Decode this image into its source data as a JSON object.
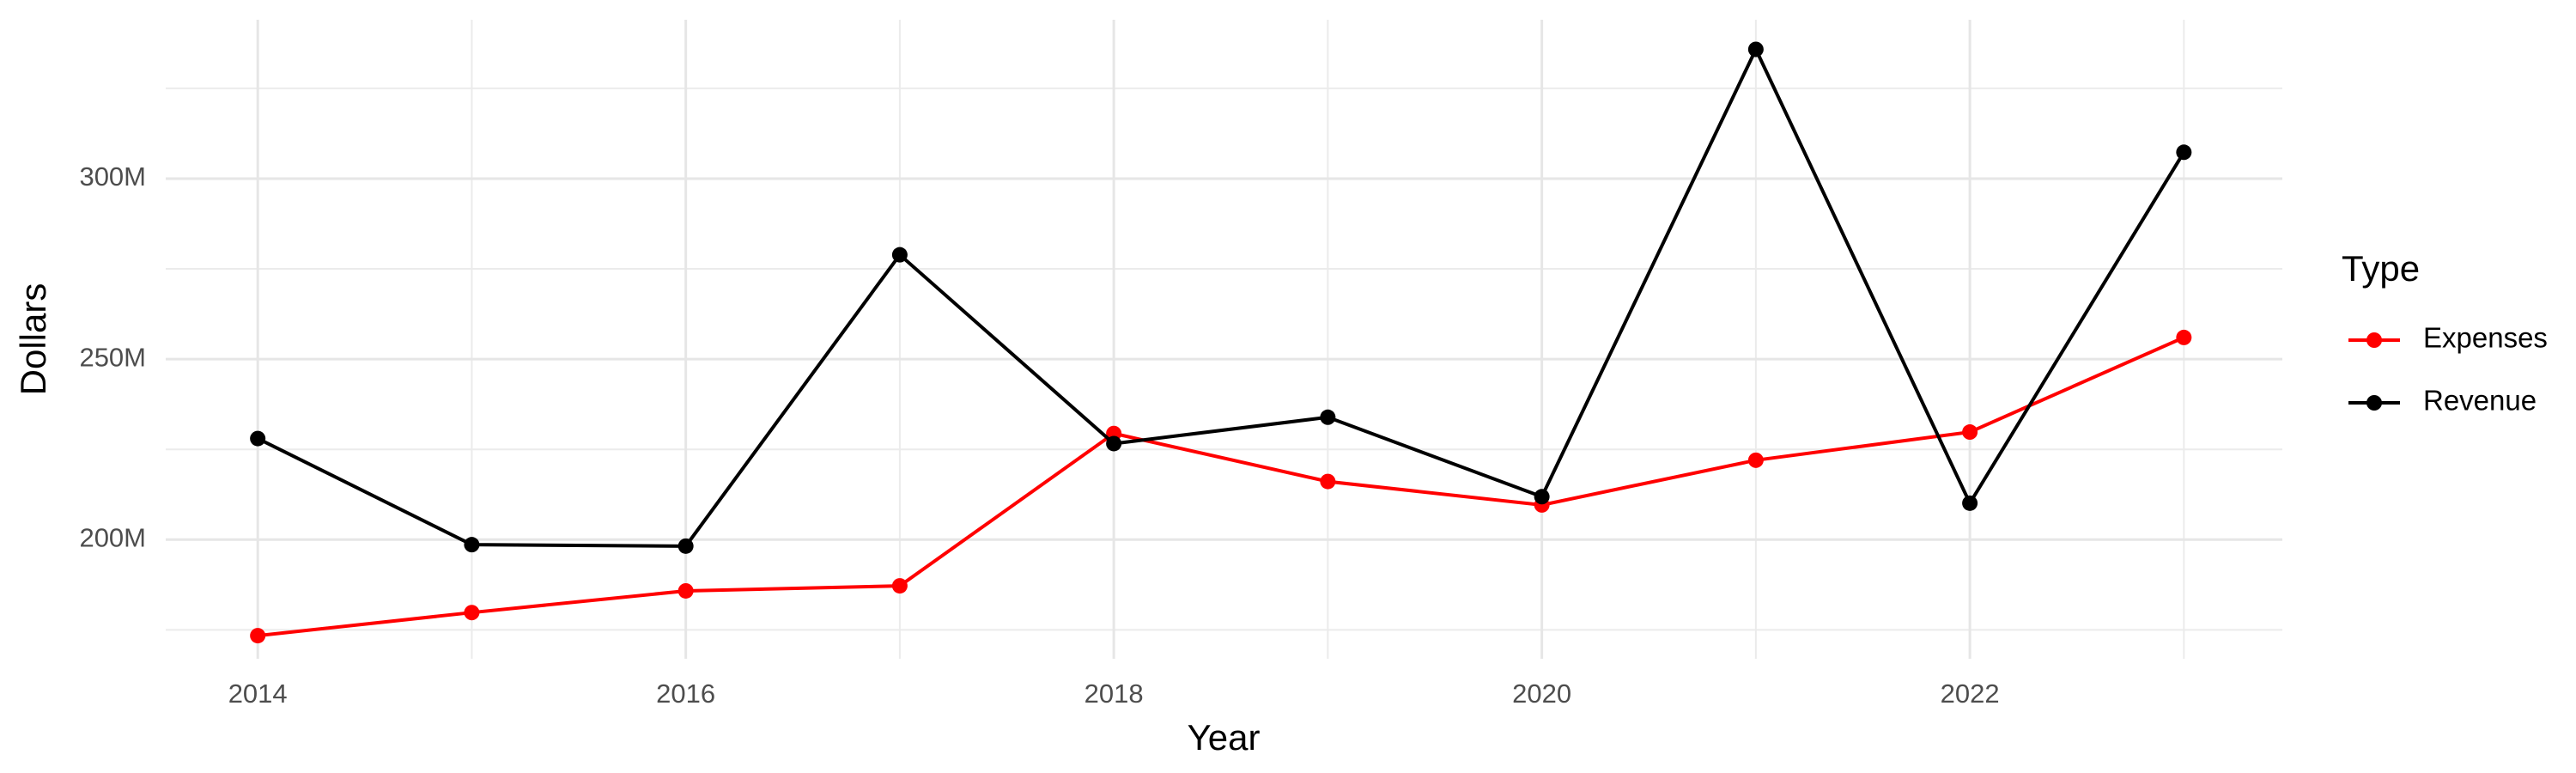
{
  "chart_data": {
    "type": "line",
    "x_label": "Year",
    "y_label": "Dollars",
    "legend_title": "Type",
    "x": [
      2014,
      2015,
      2016,
      2017,
      2018,
      2019,
      2020,
      2021,
      2022,
      2023
    ],
    "series": [
      {
        "name": "Expenses",
        "color": "#ff0000",
        "values": [
          173400000,
          179800000,
          185800000,
          187200000,
          229400000,
          216100000,
          209600000,
          222000000,
          229800000,
          256000000
        ]
      },
      {
        "name": "Revenue",
        "color": "#000000",
        "values": [
          228000000,
          198600000,
          198200000,
          278900000,
          226600000,
          233900000,
          211900000,
          335800000,
          210100000,
          307300000
        ]
      }
    ],
    "xlim": [
      2013.57,
      2023.46
    ],
    "xticks": [
      2014,
      2016,
      2018,
      2020,
      2022
    ],
    "xminor": [
      2015,
      2017,
      2019,
      2021,
      2023
    ],
    "ylim": [
      167000000,
      344000000
    ],
    "yticks": [
      {
        "value": 200000000,
        "label": "200M"
      },
      {
        "value": 250000000,
        "label": "250M"
      },
      {
        "value": 300000000,
        "label": "300M"
      }
    ],
    "yminor": [
      175000000,
      225000000,
      275000000,
      325000000
    ],
    "grid": true,
    "legend_position": "right"
  }
}
